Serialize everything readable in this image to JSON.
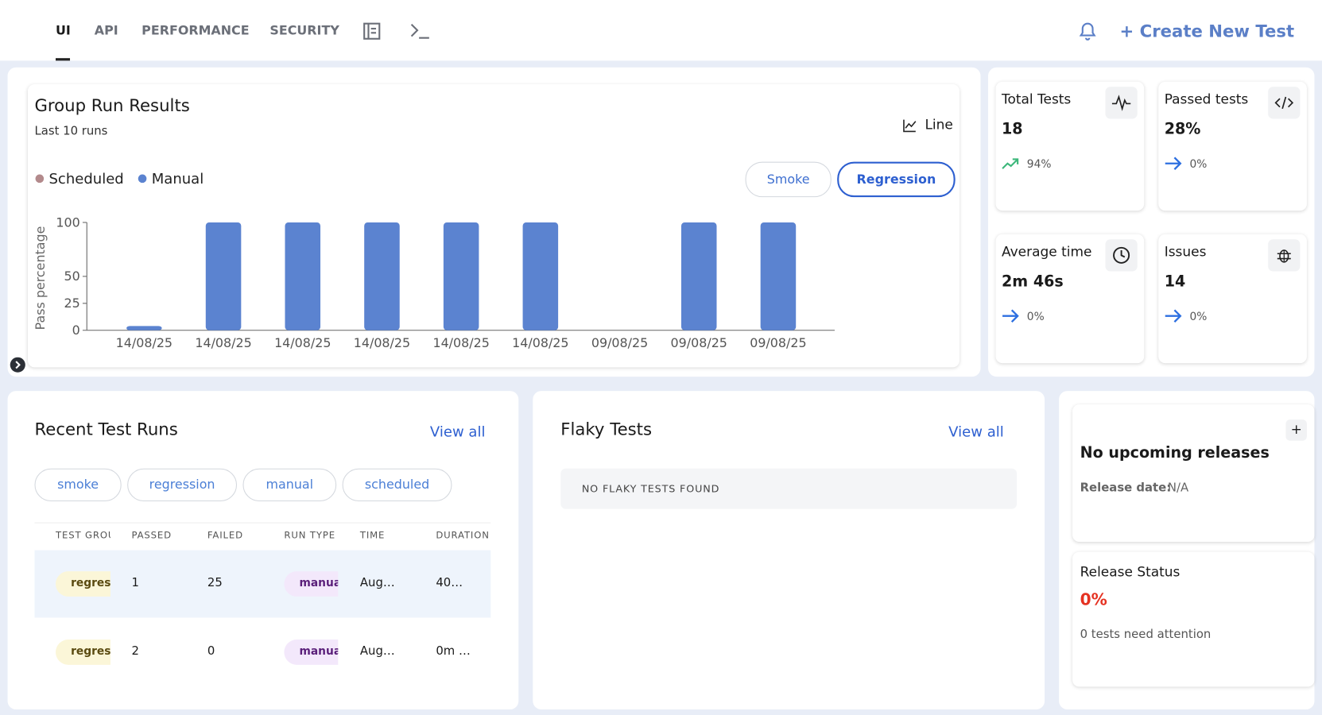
{
  "nav": {
    "tabs": [
      "UI",
      "API",
      "PERFORMANCE",
      "SECURITY"
    ],
    "create": "+ Create New Test"
  },
  "chart_data": {
    "type": "bar",
    "title": "Group Run Results",
    "subtitle": "Last 10 runs",
    "toggle": "Line",
    "filters": [
      "Smoke",
      "Regression"
    ],
    "y_label": "Pass percentage",
    "categories": [
      "14/08/25",
      "14/08/25",
      "14/08/25",
      "14/08/25",
      "14/08/25",
      "14/08/25",
      "09/08/25",
      "09/08/25",
      "09/08/25"
    ],
    "series": [
      {
        "name": "Scheduled",
        "color": "#b38a8c",
        "values": [
          null,
          null,
          null,
          null,
          null,
          null,
          null,
          null,
          null
        ]
      },
      {
        "name": "Manual",
        "color": "#5b83d0",
        "values": [
          4,
          100,
          100,
          100,
          100,
          100,
          0,
          100,
          100
        ]
      }
    ],
    "ylim": [
      0,
      100
    ],
    "yticks": [
      0,
      25,
      50,
      100
    ]
  },
  "stats": [
    {
      "label": "Total Tests",
      "value": "18",
      "change": "94%"
    },
    {
      "label": "Passed tests",
      "value": "28%",
      "change": "0%"
    },
    {
      "label": "Average time",
      "value": "2m 46s",
      "change": "0%"
    },
    {
      "label": "Issues",
      "value": "14",
      "change": "0%"
    }
  ],
  "recent_runs": {
    "title": "Recent Test Runs",
    "view_all": "View all",
    "filters": [
      "smoke",
      "regression",
      "manual",
      "scheduled"
    ],
    "columns": [
      "TEST GROU",
      "PASSED",
      "FAILED",
      "RUN TYPE",
      "TIME",
      "DURATION"
    ],
    "rows": [
      [
        "regress",
        "1",
        "25",
        "manua",
        "Aug…",
        "40…"
      ],
      [
        "regress",
        "2",
        "0",
        "manua",
        "Aug…",
        "0m …"
      ]
    ]
  },
  "flaky": {
    "title": "Flaky Tests",
    "view_all": "View all",
    "empty": "NO FLAKY TESTS FOUND"
  },
  "release": {
    "title": "No upcoming releases",
    "date_label": "Release date:",
    "date": "N/A"
  },
  "release_status": {
    "title": "Release Status",
    "value": "0%",
    "note": "0 tests need attention"
  }
}
